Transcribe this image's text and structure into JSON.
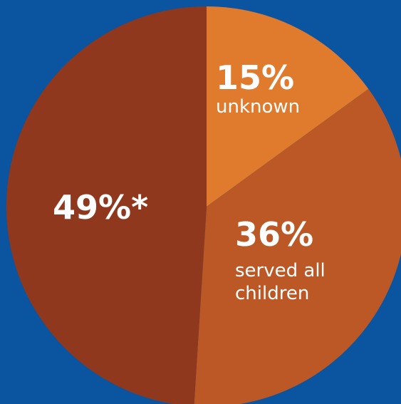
{
  "chart_data": {
    "type": "pie",
    "slices": [
      {
        "value": 15,
        "pct_label": "15%",
        "text": "unknown",
        "color": "#e07b2e"
      },
      {
        "value": 36,
        "pct_label": "36%",
        "text": "served all children",
        "color": "#bb5826"
      },
      {
        "value": 49,
        "pct_label": "49%*",
        "text": "",
        "color": "#8f381e"
      }
    ],
    "start": "12 o'clock",
    "direction": "clockwise",
    "legend": "none"
  },
  "colors": {
    "background": "#0a54a0"
  }
}
